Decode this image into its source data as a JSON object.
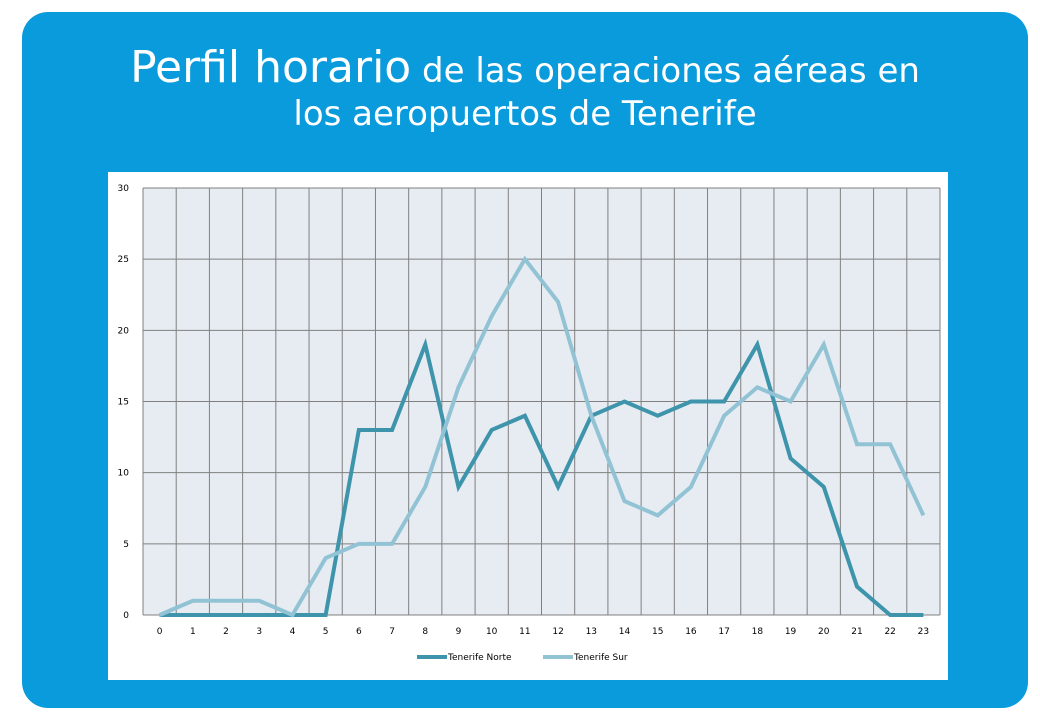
{
  "title": {
    "part1": "Perfil horario",
    "part2": " de las operaciones aéreas en",
    "line2": "los aeropuertos de Tenerife"
  },
  "colors": {
    "panel": "#0a9bdc",
    "plot_bg": "#e6ecf2",
    "grid": "#808080",
    "norte": "#3e94ab",
    "sur": "#92c3d5"
  },
  "chart_data": {
    "type": "line",
    "title": "Perfil horario de las operaciones aéreas en los aeropuertos de Tenerife",
    "xlabel": "",
    "ylabel": "",
    "categories": [
      "0",
      "1",
      "2",
      "3",
      "4",
      "5",
      "6",
      "7",
      "8",
      "9",
      "10",
      "11",
      "12",
      "13",
      "14",
      "15",
      "16",
      "17",
      "18",
      "19",
      "20",
      "21",
      "22",
      "23"
    ],
    "ylim": [
      0,
      30
    ],
    "yticks": [
      0,
      5,
      10,
      15,
      20,
      25,
      30
    ],
    "grid": true,
    "legend_position": "bottom",
    "series": [
      {
        "name": "Tenerife Norte",
        "values": [
          0,
          0,
          0,
          0,
          0,
          0,
          13,
          13,
          19,
          9,
          13,
          14,
          9,
          14,
          15,
          14,
          15,
          15,
          19,
          11,
          9,
          2,
          0,
          0
        ]
      },
      {
        "name": "Tenerife Sur",
        "values": [
          0,
          1,
          1,
          1,
          0,
          4,
          5,
          5,
          9,
          16,
          21,
          25,
          22,
          14,
          8,
          7,
          9,
          14,
          16,
          15,
          19,
          12,
          12,
          7
        ]
      }
    ]
  }
}
